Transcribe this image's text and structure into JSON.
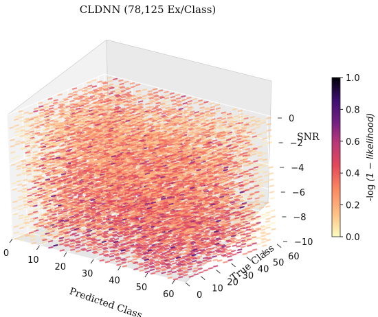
{
  "chart_data": {
    "type": "scatter3d",
    "title": "CLDNN (78,125 Ex/Class)",
    "xlabel": "Predicted Class",
    "ylabel": "True Class",
    "zlabel": "SNR",
    "xlim": [
      0,
      64
    ],
    "ylim": [
      0,
      64
    ],
    "zlim": [
      -10,
      0
    ],
    "x_ticks": [
      "0",
      "10",
      "20",
      "30",
      "40",
      "50",
      "60"
    ],
    "y_ticks": [
      "0",
      "10",
      "20",
      "30",
      "40",
      "50",
      "60"
    ],
    "z_ticks": [
      "0",
      "−2",
      "−4",
      "−6",
      "−8",
      "−10"
    ],
    "grid": true,
    "colorbar": {
      "label_prefix": "-log",
      "label_math": "(1 − likelihood)",
      "range": [
        0.0,
        1.0
      ],
      "ticks": [
        "0.0",
        "0.2",
        "0.4",
        "0.6",
        "0.8",
        "1.0"
      ],
      "colormap": "magma_r",
      "colors": [
        "#fcfdbf",
        "#fec287",
        "#fb8861",
        "#e3475a",
        "#b5367a",
        "#721f81",
        "#3b0f70",
        "#000004"
      ]
    },
    "num_classes": 64,
    "snr_levels": [
      0,
      -2,
      -4,
      -6,
      -8,
      -10
    ],
    "value_range_shown": [
      0.0,
      0.5
    ]
  }
}
